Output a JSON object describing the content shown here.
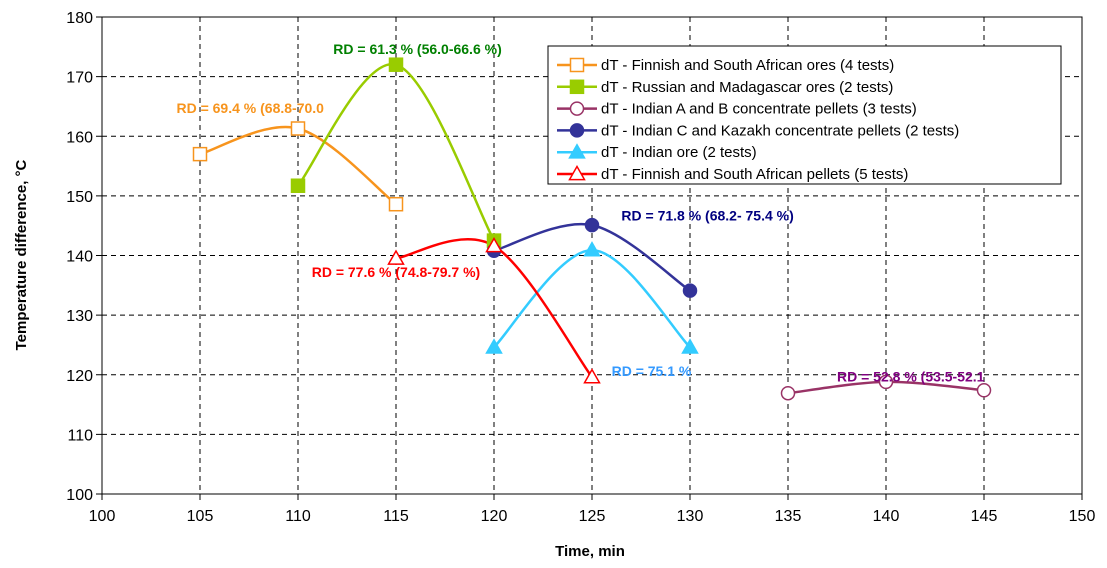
{
  "chart_data": {
    "type": "line",
    "title": "",
    "xlabel": "Time, min",
    "ylabel": "Temperature difference, °C",
    "xlim": [
      100,
      150
    ],
    "ylim": [
      100,
      180
    ],
    "xticks": [
      100,
      105,
      110,
      115,
      120,
      125,
      130,
      135,
      140,
      145,
      150
    ],
    "yticks": [
      100,
      110,
      120,
      130,
      140,
      150,
      160,
      170,
      180
    ],
    "grid": true,
    "legend_position": "top-right",
    "series": [
      {
        "name": "dT - Finnish and South African ores (4 tests)",
        "color": "#f7941d",
        "marker": "square-open",
        "x": [
          105,
          110,
          115
        ],
        "y": [
          157,
          161.3,
          148.6
        ]
      },
      {
        "name": "dT - Russian and Madagascar ores (2 tests)",
        "color": "#99cc00",
        "marker": "square-filled",
        "x": [
          110,
          115,
          120
        ],
        "y": [
          151.7,
          172,
          142.5
        ]
      },
      {
        "name": "dT - Indian A and B concentrate pellets (3 tests)",
        "color": "#993366",
        "marker": "circle-open",
        "x": [
          135,
          140,
          145
        ],
        "y": [
          116.9,
          118.8,
          117.4
        ]
      },
      {
        "name": "dT - Indian C and Kazakh concentrate pellets (2 tests)",
        "color": "#333399",
        "marker": "circle-filled",
        "x": [
          120,
          125,
          130
        ],
        "y": [
          140.8,
          145.1,
          134.1
        ]
      },
      {
        "name": "dT - Indian ore (2 tests)",
        "color": "#33ccff",
        "marker": "triangle-filled",
        "x": [
          120,
          125,
          130
        ],
        "y": [
          124.6,
          140.9,
          124.6
        ]
      },
      {
        "name": "dT - Finnish and South African pellets (5 tests)",
        "color": "#ff0000",
        "marker": "triangle-open",
        "x": [
          115,
          120,
          125
        ],
        "y": [
          139.5,
          141.6,
          119.6
        ]
      }
    ],
    "annotations": [
      {
        "text": "RD = 69.4 % (68.8-70.0",
        "color": "#f7941d",
        "x": 103.8,
        "y": 163.9
      },
      {
        "text": "RD = 61.3 % (56.0-66.6 %)",
        "color": "#008000",
        "x": 111.8,
        "y": 173.8
      },
      {
        "text": "RD = 77.6 % (74.8-79.7 %)",
        "color": "#ff0000",
        "x": 110.7,
        "y": 136.4
      },
      {
        "text": "RD = 71.8 % (68.2- 75.4 %)",
        "color": "#000080",
        "x": 126.5,
        "y": 145.9
      },
      {
        "text": "RD = 75.1 %",
        "color": "#3399ff",
        "x": 126,
        "y": 119.8
      },
      {
        "text": "RD = 52.8 % (53.5-52.1",
        "color": "#800080",
        "x": 137.5,
        "y": 118.9
      }
    ]
  }
}
